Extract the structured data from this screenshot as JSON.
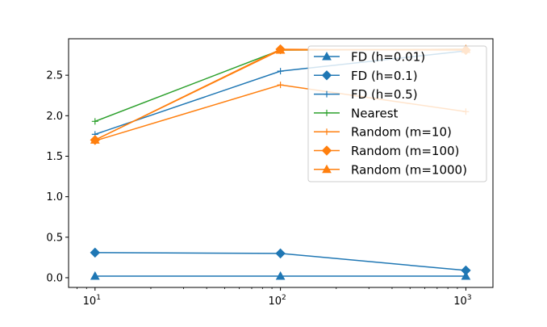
{
  "chart_data": {
    "type": "line",
    "x": [
      10,
      100,
      1000
    ],
    "x_tick_labels": [
      {
        "value": 10,
        "base": "10",
        "exp": "1"
      },
      {
        "value": 100,
        "base": "10",
        "exp": "2"
      },
      {
        "value": 1000,
        "base": "10",
        "exp": "3"
      }
    ],
    "x_scale": "log",
    "xlim": [
      7.2,
      1400
    ],
    "y_ticks": [
      0.0,
      0.5,
      1.0,
      1.5,
      2.0,
      2.5
    ],
    "y_tick_labels": [
      "0.0",
      "0.5",
      "1.0",
      "1.5",
      "2.0",
      "2.5"
    ],
    "ylim": [
      -0.12,
      2.95
    ],
    "grid": false,
    "legend_position": "top-right",
    "series": [
      {
        "name": "FD (h=0.01)",
        "values": [
          0.02,
          0.02,
          0.02
        ],
        "color": "#1f77b4",
        "marker": "triangle"
      },
      {
        "name": "FD (h=0.1)",
        "values": [
          0.31,
          0.3,
          0.09
        ],
        "color": "#1f77b4",
        "marker": "diamond"
      },
      {
        "name": "FD (h=0.5)",
        "values": [
          1.77,
          2.55,
          2.8
        ],
        "color": "#1f77b4",
        "marker": "plus"
      },
      {
        "name": "Nearest",
        "values": [
          1.93,
          2.81,
          2.82
        ],
        "color": "#2ca02c",
        "marker": "plus"
      },
      {
        "name": "Random (m=10)",
        "values": [
          1.69,
          2.38,
          2.05
        ],
        "color": "#ff7f0e",
        "marker": "plus"
      },
      {
        "name": "Random (m=100)",
        "values": [
          1.7,
          2.82,
          2.81
        ],
        "color": "#ff7f0e",
        "marker": "diamond"
      },
      {
        "name": "Random (m=1000)",
        "values": [
          1.7,
          2.81,
          2.82
        ],
        "color": "#ff7f0e",
        "marker": "triangle"
      }
    ]
  }
}
